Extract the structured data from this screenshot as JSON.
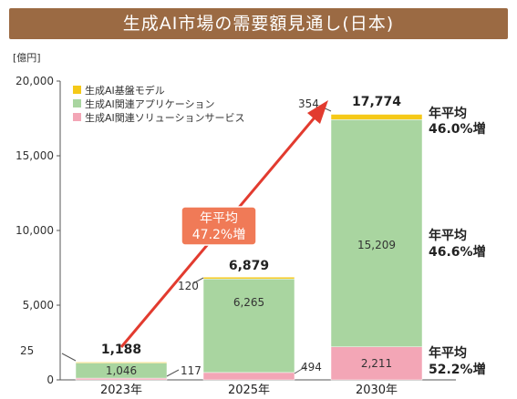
{
  "title": "生成AI市場の需要額見通し(日本)",
  "colors": {
    "title_bg": "#9b6a43",
    "foundation": "#f5c918",
    "applications": "#a9d5a0",
    "solutions": "#f3a6b6",
    "arrow": "#e23b2f",
    "callout_bg": "#f07a57"
  },
  "chart_data": {
    "type": "bar",
    "stacked": true,
    "ylabel": "[億円]",
    "ylim": [
      0,
      20000
    ],
    "y_ticks": [
      "0",
      "5,000",
      "10,000",
      "15,000",
      "20,000"
    ],
    "y_tick_values": [
      0,
      5000,
      10000,
      15000,
      20000
    ],
    "categories": [
      "2023年",
      "2025年",
      "2030年"
    ],
    "legend_position": "top-left",
    "series": [
      {
        "name": "生成AI関連ソリューションサービス",
        "color_key": "solutions",
        "values": [
          117,
          494,
          2211
        ],
        "labels": [
          "117",
          "494",
          "2,211"
        ]
      },
      {
        "name": "生成AI関連アプリケーション",
        "color_key": "applications",
        "values": [
          1046,
          6265,
          15209
        ],
        "labels": [
          "1,046",
          "6,265",
          "15,209"
        ]
      },
      {
        "name": "生成AI基盤モデル",
        "color_key": "foundation",
        "values": [
          25,
          120,
          354
        ],
        "labels": [
          "25",
          "120",
          "354"
        ]
      }
    ],
    "legend_order": [
      "生成AI基盤モデル",
      "生成AI関連アプリケーション",
      "生成AI関連ソリューションサービス"
    ],
    "totals": [
      1188,
      6879,
      17774
    ],
    "total_labels": [
      "1,188",
      "6,879",
      "17,774"
    ],
    "growth_annotations": [
      {
        "series": "生成AI基盤モデル",
        "text1": "年平均",
        "text2": "46.0%増"
      },
      {
        "series": "生成AI関連アプリケーション",
        "text1": "年平均",
        "text2": "46.6%増"
      },
      {
        "series": "生成AI関連ソリューションサービス",
        "text1": "年平均",
        "text2": "52.2%増"
      }
    ],
    "overall_growth": {
      "text1": "年平均",
      "text2": "47.2%増"
    }
  }
}
